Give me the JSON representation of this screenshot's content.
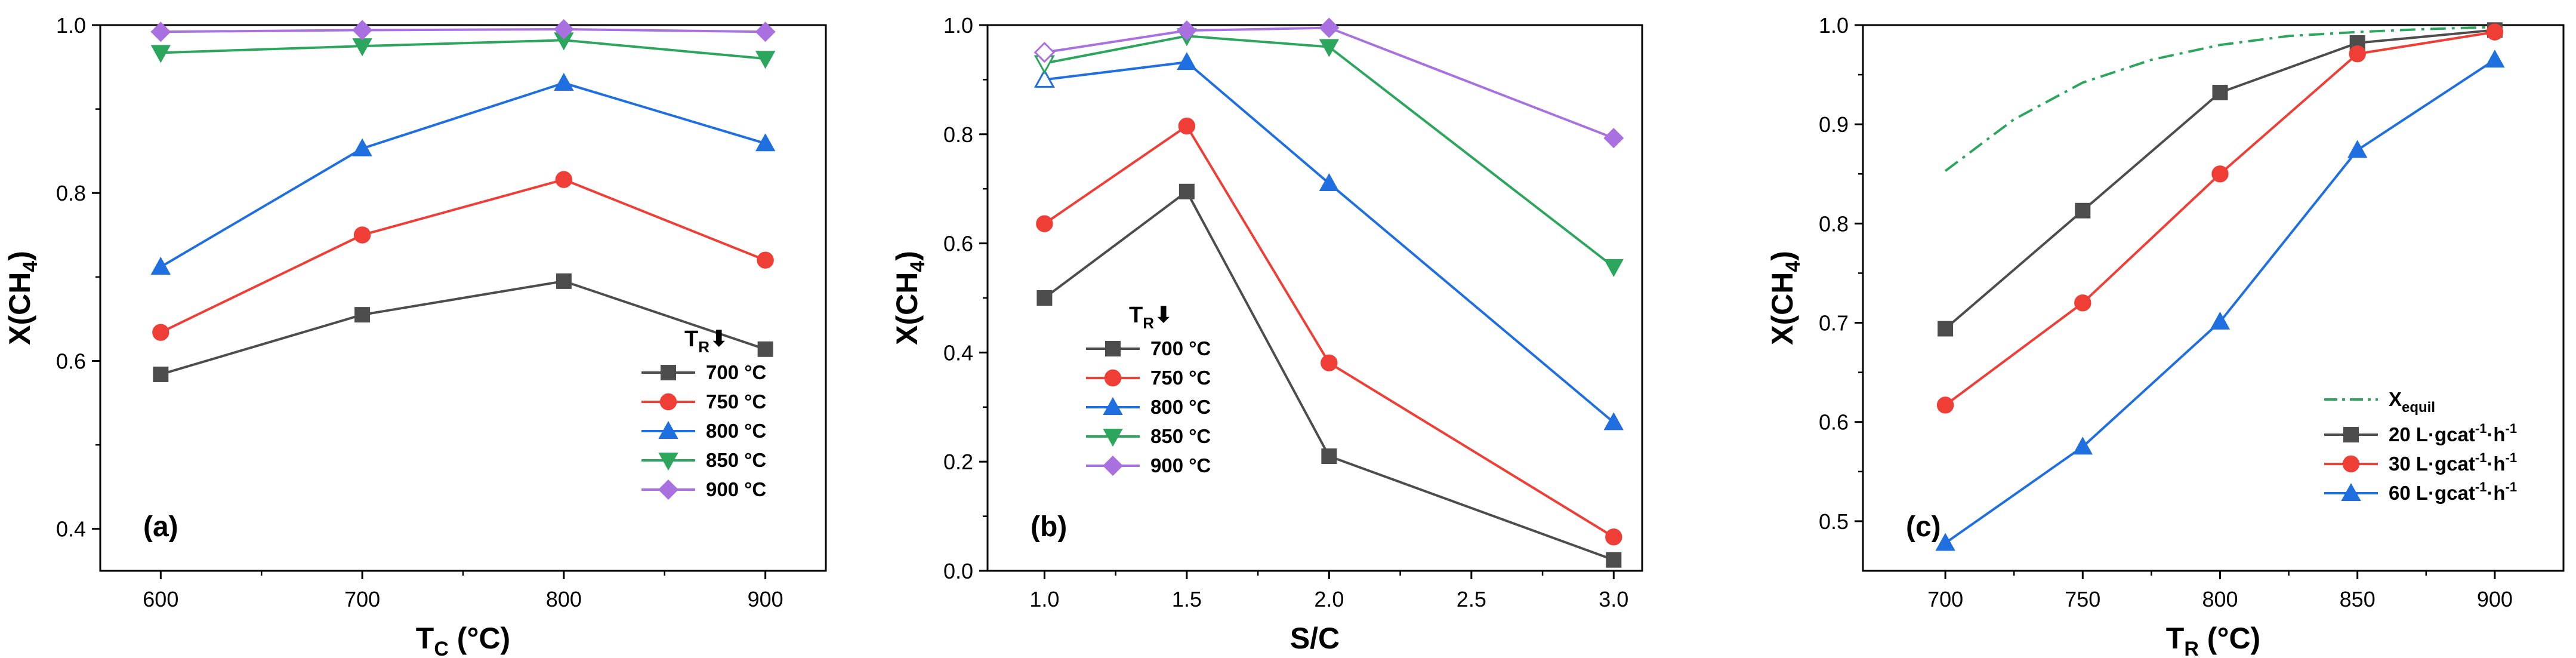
{
  "chart_data": [
    {
      "type": "line",
      "panel_label": "(a)",
      "xlabel": "T",
      "xlabel_sub": "C",
      "xlabel_suffix": " (°C)",
      "ylabel": "X(CH",
      "ylabel_sub": "4",
      "ylabel_suffix": ")",
      "xlim": [
        570,
        930
      ],
      "ylim": [
        0.35,
        1.0
      ],
      "xticks": [
        600,
        700,
        800,
        900
      ],
      "xtick_labels": [
        "600",
        "700",
        "800",
        "900"
      ],
      "yticks": [
        0.4,
        0.6,
        0.8,
        1.0
      ],
      "ytick_labels": [
        "0.4",
        "0.6",
        "0.8",
        "1.0"
      ],
      "legend": {
        "title": "T",
        "title_sub": "R",
        "title_arrow": "⬇",
        "position": "bottom-right"
      },
      "x": [
        600,
        700,
        800,
        900
      ],
      "series": [
        {
          "name": "700 °C",
          "color": "#4d4d4d",
          "marker": "square",
          "values": [
            0.584,
            0.655,
            0.695,
            0.614
          ]
        },
        {
          "name": "750 °C",
          "color": "#ef3e36",
          "marker": "circle",
          "values": [
            0.634,
            0.75,
            0.816,
            0.72
          ]
        },
        {
          "name": "800 °C",
          "color": "#1f6fe0",
          "marker": "triangle-up",
          "values": [
            0.712,
            0.853,
            0.931,
            0.859
          ]
        },
        {
          "name": "850 °C",
          "color": "#2ca65c",
          "marker": "triangle-down",
          "values": [
            0.967,
            0.975,
            0.982,
            0.96
          ]
        },
        {
          "name": "900 °C",
          "color": "#a970e0",
          "marker": "diamond",
          "values": [
            0.992,
            0.994,
            0.995,
            0.992
          ]
        }
      ]
    },
    {
      "type": "line",
      "panel_label": "(b)",
      "xlabel": "S/C",
      "xlabel_sub": "",
      "xlabel_suffix": "",
      "ylabel": "X(CH",
      "ylabel_sub": "4",
      "ylabel_suffix": ")",
      "xlim": [
        0.8,
        3.1
      ],
      "ylim": [
        0.0,
        1.0
      ],
      "xticks": [
        1.0,
        1.5,
        2.0,
        2.5,
        3.0
      ],
      "xtick_labels": [
        "1.0",
        "1.5",
        "2.0",
        "2.5",
        "3.0"
      ],
      "yticks": [
        0.0,
        0.2,
        0.4,
        0.6,
        0.8,
        1.0
      ],
      "ytick_labels": [
        "0.0",
        "0.2",
        "0.4",
        "0.6",
        "0.8",
        "1.0"
      ],
      "legend": {
        "title": "T",
        "title_sub": "R",
        "title_arrow": "⬇",
        "position": "bottom-left"
      },
      "x": [
        1.0,
        1.5,
        2.0,
        3.0
      ],
      "series": [
        {
          "name": "700 °C",
          "color": "#4d4d4d",
          "marker": "square",
          "values": [
            0.5,
            0.695,
            0.21,
            0.02
          ]
        },
        {
          "name": "750 °C",
          "color": "#ef3e36",
          "marker": "circle",
          "values": [
            0.636,
            0.815,
            0.381,
            0.062
          ]
        },
        {
          "name": "800 °C",
          "color": "#1f6fe0",
          "marker": "triangle-up",
          "values": [
            0.9,
            0.932,
            0.71,
            0.272
          ],
          "open_first": true
        },
        {
          "name": "850 °C",
          "color": "#2ca65c",
          "marker": "triangle-down",
          "values": [
            0.93,
            0.98,
            0.96,
            0.557
          ],
          "open_first": true
        },
        {
          "name": "900 °C",
          "color": "#a970e0",
          "marker": "diamond",
          "values": [
            0.95,
            0.99,
            0.995,
            0.793
          ],
          "open_first": true
        }
      ]
    },
    {
      "type": "line",
      "panel_label": "(c)",
      "xlabel": "T",
      "xlabel_sub": "R",
      "xlabel_suffix": " (°C)",
      "ylabel": "X(CH",
      "ylabel_sub": "4",
      "ylabel_suffix": ")",
      "xlim": [
        670,
        925
      ],
      "ylim": [
        0.45,
        1.0
      ],
      "xticks": [
        700,
        750,
        800,
        850,
        900
      ],
      "xtick_labels": [
        "700",
        "750",
        "800",
        "850",
        "900"
      ],
      "yticks": [
        0.5,
        0.6,
        0.7,
        0.8,
        0.9,
        1.0
      ],
      "ytick_labels": [
        "0.5",
        "0.6",
        "0.7",
        "0.8",
        "0.9",
        "1.0"
      ],
      "legend": {
        "title": "",
        "position": "bottom-right"
      },
      "x": [
        700,
        750,
        800,
        850,
        900
      ],
      "equilibrium": {
        "name": "X",
        "name_sub": "equil",
        "color": "#2ca65c",
        "x": [
          700,
          725,
          750,
          775,
          800,
          825,
          850,
          875,
          900
        ],
        "values": [
          0.853,
          0.905,
          0.942,
          0.965,
          0.98,
          0.989,
          0.993,
          0.996,
          0.998
        ]
      },
      "series": [
        {
          "name": "20 L·gcat",
          "sup1": "-1",
          "mid": "·h",
          "sup2": "-1",
          "color": "#4d4d4d",
          "marker": "square",
          "values": [
            0.694,
            0.813,
            0.932,
            0.982,
            0.995
          ]
        },
        {
          "name": "30 L·gcat",
          "sup1": "-1",
          "mid": "·h",
          "sup2": "-1",
          "color": "#ef3e36",
          "marker": "circle",
          "values": [
            0.617,
            0.72,
            0.85,
            0.971,
            0.993
          ]
        },
        {
          "name": "60 L·gcat",
          "sup1": "-1",
          "mid": "·h",
          "sup2": "-1",
          "color": "#1f6fe0",
          "marker": "triangle-up",
          "values": [
            0.478,
            0.575,
            0.701,
            0.874,
            0.965
          ]
        }
      ]
    }
  ]
}
